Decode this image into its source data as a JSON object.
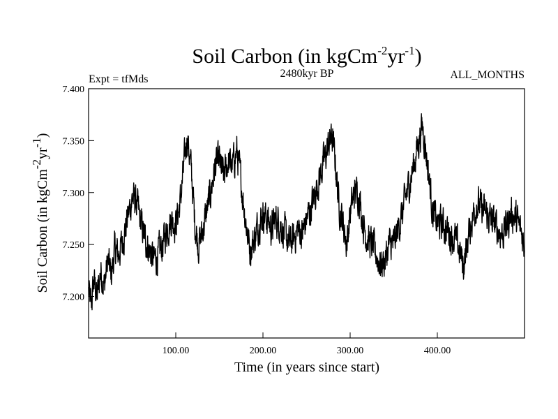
{
  "chart_data": {
    "type": "line",
    "title": {
      "main": "Soil Carbon (in kgCm",
      "sup1": "-2",
      "mid": "yr",
      "sup2": "-1",
      "end": ")"
    },
    "subtitle": "2480kyr BP",
    "left_note": "Expt = tfMds",
    "right_note": "ALL_MONTHS",
    "xlabel": "Time (in years since start)",
    "ylabel": {
      "main": "Soil Carbon (in kgCm",
      "sup1": "-2",
      "mid": "yr",
      "sup2": "-1",
      "end": ")"
    },
    "xlim": [
      0,
      500
    ],
    "ylim": [
      7.16,
      7.4
    ],
    "xticks": [
      100,
      200,
      300,
      400
    ],
    "xtick_labels": [
      "100.00",
      "200.00",
      "300.00",
      "400.00"
    ],
    "yticks": [
      7.2,
      7.25,
      7.3,
      7.35,
      7.4
    ],
    "ytick_labels": [
      "7.200",
      "7.250",
      "7.300",
      "7.350",
      "7.400"
    ],
    "grid": false,
    "series": [
      {
        "name": "Soil Carbon",
        "color": "#000000",
        "anchors_x": [
          0,
          3,
          6,
          10,
          14,
          18,
          22,
          26,
          30,
          34,
          38,
          42,
          46,
          50,
          55,
          60,
          65,
          70,
          75,
          80,
          85,
          90,
          95,
          100,
          105,
          110,
          113,
          118,
          122,
          126,
          130,
          135,
          140,
          145,
          150,
          155,
          160,
          165,
          170,
          175,
          180,
          185,
          190,
          195,
          200,
          205,
          210,
          215,
          220,
          225,
          230,
          235,
          240,
          245,
          250,
          255,
          260,
          265,
          270,
          275,
          279,
          283,
          287,
          292,
          296,
          300,
          305,
          310,
          315,
          320,
          325,
          330,
          335,
          340,
          345,
          350,
          355,
          360,
          365,
          370,
          375,
          380,
          383,
          387,
          391,
          395,
          400,
          405,
          410,
          415,
          420,
          425,
          430,
          435,
          440,
          445,
          450,
          455,
          460,
          465,
          470,
          475,
          480,
          485,
          490,
          495,
          500
        ],
        "anchors_y": [
          7.205,
          7.19,
          7.215,
          7.2,
          7.225,
          7.21,
          7.235,
          7.22,
          7.245,
          7.24,
          7.25,
          7.265,
          7.28,
          7.295,
          7.29,
          7.27,
          7.255,
          7.245,
          7.235,
          7.24,
          7.25,
          7.265,
          7.275,
          7.27,
          7.29,
          7.33,
          7.355,
          7.32,
          7.27,
          7.25,
          7.26,
          7.28,
          7.3,
          7.325,
          7.33,
          7.315,
          7.33,
          7.325,
          7.34,
          7.31,
          7.275,
          7.245,
          7.255,
          7.27,
          7.28,
          7.275,
          7.265,
          7.275,
          7.27,
          7.26,
          7.25,
          7.255,
          7.265,
          7.26,
          7.275,
          7.285,
          7.3,
          7.315,
          7.33,
          7.345,
          7.355,
          7.33,
          7.29,
          7.27,
          7.25,
          7.28,
          7.3,
          7.3,
          7.27,
          7.255,
          7.25,
          7.24,
          7.23,
          7.235,
          7.25,
          7.25,
          7.265,
          7.28,
          7.3,
          7.315,
          7.335,
          7.355,
          7.365,
          7.34,
          7.31,
          7.28,
          7.27,
          7.27,
          7.265,
          7.26,
          7.255,
          7.245,
          7.23,
          7.255,
          7.275,
          7.29,
          7.285,
          7.28,
          7.275,
          7.27,
          7.265,
          7.26,
          7.27,
          7.28,
          7.275,
          7.265,
          7.25
        ]
      }
    ]
  }
}
